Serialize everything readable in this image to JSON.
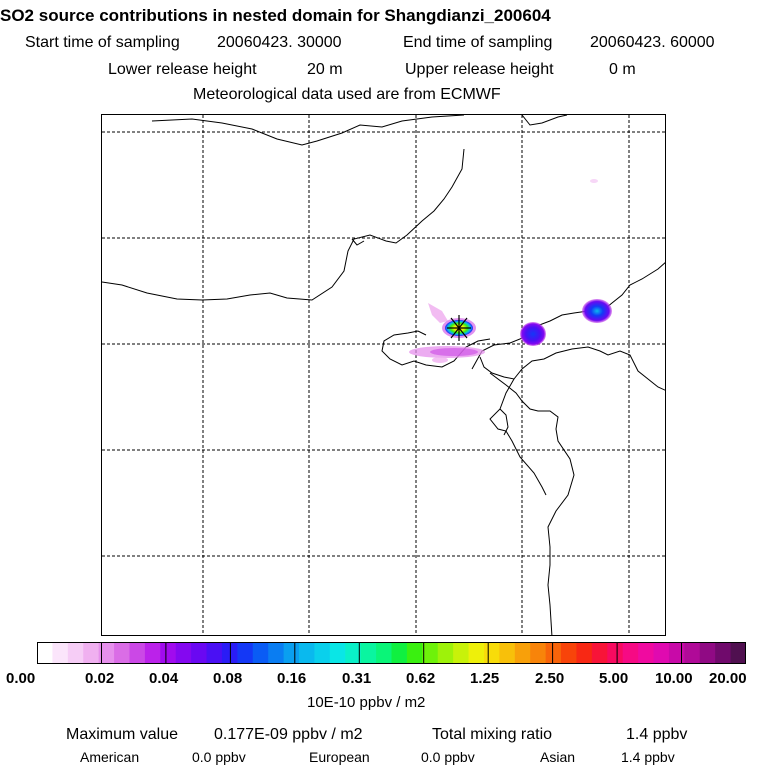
{
  "header": {
    "title": "SO2 source contributions in nested domain for Shangdianzi_200604",
    "start_label": "Start time of sampling",
    "start_value": "20060423. 30000",
    "end_label": "End time of sampling",
    "end_value": "20060423. 60000",
    "lower_label": "Lower release height",
    "lower_value": "20 m",
    "upper_label": "Upper release height",
    "upper_value": "0 m",
    "met": "Meteorological data used are from ECMWF"
  },
  "chart_data": {
    "type": "heatmap",
    "title": "SO2 source contributions in nested domain for Shangdianzi_200604",
    "colorbar": {
      "tick_labels": [
        "0.00",
        "0.02",
        "0.04",
        "0.08",
        "0.16",
        "0.31",
        "0.62",
        "1.25",
        "2.50",
        "5.00",
        "10.00",
        "20.00"
      ],
      "unit": "10E-10 ppbv / m2",
      "colors": [
        "#ffffff",
        "#fbe5fb",
        "#f6cdf6",
        "#f0b0f0",
        "#e690ec",
        "#da6de6",
        "#cb48e6",
        "#bb22ea",
        "#a10bee",
        "#8408f0",
        "#6a08f2",
        "#4a10f4",
        "#2a1cf6",
        "#1438f6",
        "#0a5cf5",
        "#0a7df2",
        "#0a9ff0",
        "#0ab9ee",
        "#0ad0ec",
        "#0ae6e6",
        "#0af0c8",
        "#0af5a0",
        "#0af578",
        "#10f040",
        "#3af010",
        "#6ef20a",
        "#9ef20a",
        "#c8f20a",
        "#eef00a",
        "#f8dc0a",
        "#f8c00a",
        "#f8a00a",
        "#f8840a",
        "#f8640a",
        "#f8440a",
        "#f82814",
        "#f81438",
        "#f80a60",
        "#f60a84",
        "#f00aa0",
        "#e00ab0",
        "#c80aa8",
        "#b00a98",
        "#900a84",
        "#700a6c",
        "#501050"
      ]
    },
    "plumes": [
      {
        "name": "source-receptor",
        "peak_level": "1.25"
      },
      {
        "name": "blob-east",
        "peak_level": "0.08"
      },
      {
        "name": "blob-northeast",
        "peak_level": "0.16"
      },
      {
        "name": "plume-southwest",
        "peak_level": "0.02"
      }
    ]
  },
  "footer": {
    "max_label": "Maximum value",
    "max_value": "0.177E-09 ppbv / m2",
    "total_label": "Total mixing ratio",
    "total_value": "1.4 ppbv",
    "american_label": "American",
    "american_value": "0.0 ppbv",
    "european_label": "European",
    "european_value": "0.0 ppbv",
    "asian_label": "Asian",
    "asian_value": "1.4 ppbv"
  }
}
